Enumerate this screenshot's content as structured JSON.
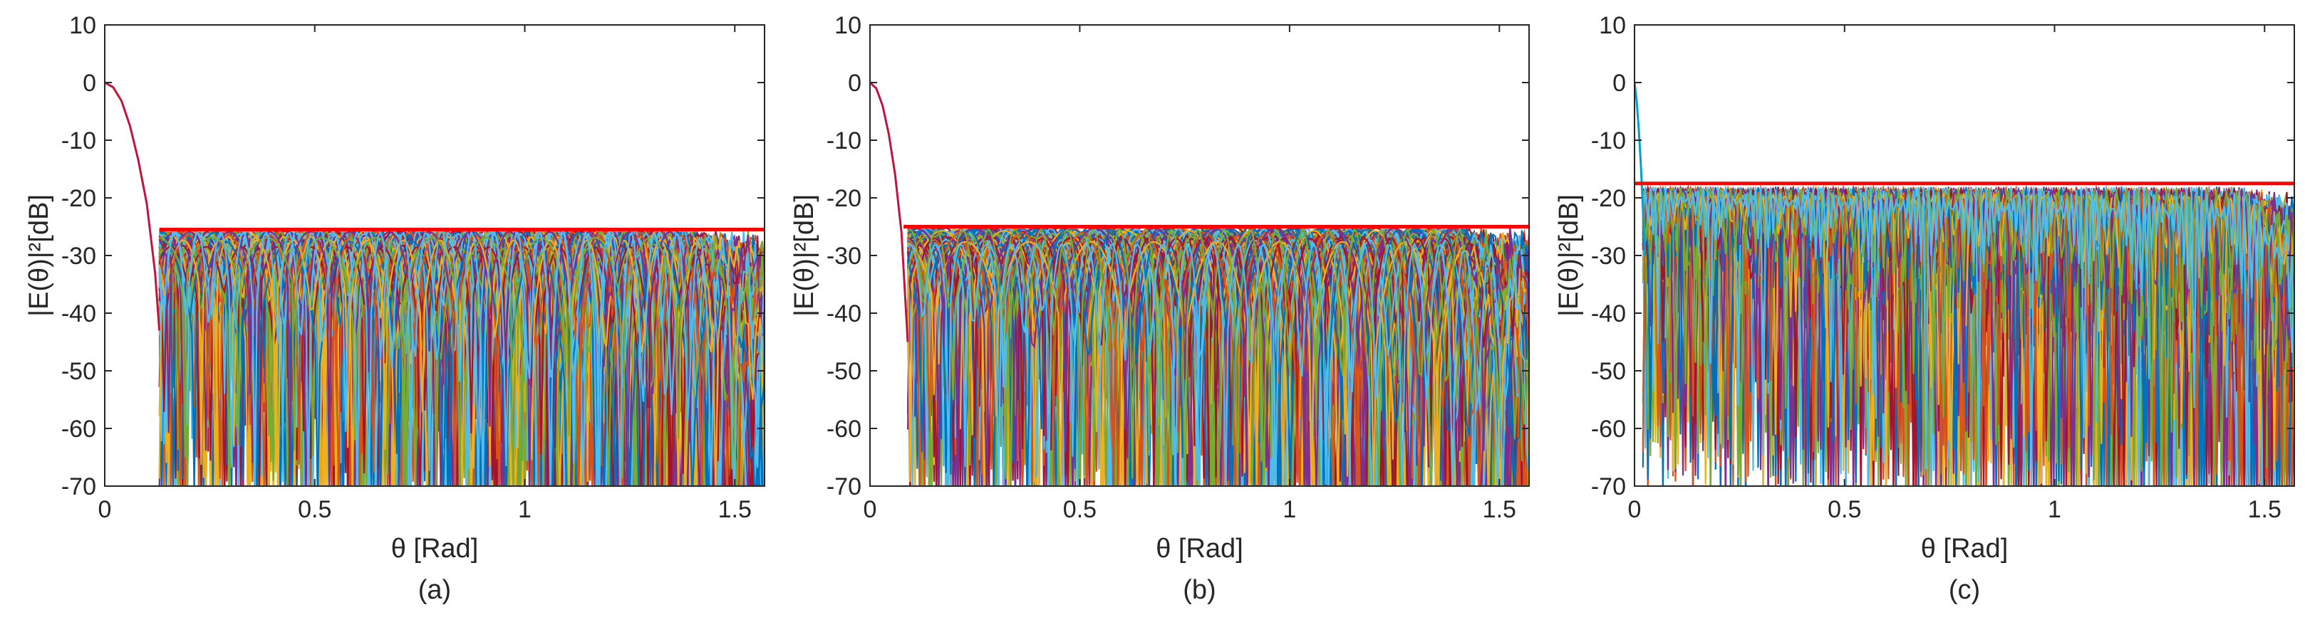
{
  "figure": {
    "panel_labels": [
      "(a)",
      "(b)",
      "(c)"
    ]
  },
  "chart_data": [
    {
      "type": "line",
      "panel": "(a)",
      "xlabel": "θ [Rad]",
      "ylabel": "|E(θ)|²[dB]",
      "xlim": [
        0,
        1.5708
      ],
      "ylim": [
        -70,
        10
      ],
      "xticks": [
        0,
        0.5,
        1,
        1.5
      ],
      "xtick_labels": [
        "0",
        "0.5",
        "1",
        "1.5"
      ],
      "yticks": [
        10,
        0,
        -10,
        -20,
        -30,
        -40,
        -50,
        -60,
        -70
      ],
      "ytick_labels": [
        "10",
        "0",
        "-10",
        "-20",
        "-30",
        "-40",
        "-50",
        "-60",
        "-70"
      ],
      "grid": false,
      "threshold_line": {
        "y": -25.5,
        "x_start": 0.13,
        "x_end": 1.5708,
        "color": "#ff0000"
      },
      "main_lobe": {
        "x": [
          0,
          0.02,
          0.04,
          0.06,
          0.08,
          0.1,
          0.12,
          0.13
        ],
        "y": [
          0,
          -0.8,
          -3.2,
          -7.5,
          -13.5,
          -21,
          -33,
          -43
        ],
        "color": "#c0143c"
      },
      "sidelobe_band": {
        "x_start": 0.13,
        "x_end": 1.5708,
        "peak_level": -25.5,
        "null_min": -70
      },
      "series_count": 160
    },
    {
      "type": "line",
      "panel": "(b)",
      "xlabel": "θ [Rad]",
      "ylabel": "|E(θ)|²[dB]",
      "xlim": [
        0,
        1.5708
      ],
      "ylim": [
        -70,
        10
      ],
      "xticks": [
        0,
        0.5,
        1,
        1.5
      ],
      "xtick_labels": [
        "0",
        "0.5",
        "1",
        "1.5"
      ],
      "yticks": [
        10,
        0,
        -10,
        -20,
        -30,
        -40,
        -50,
        -60,
        -70
      ],
      "ytick_labels": [
        "10",
        "0",
        "-10",
        "-20",
        "-30",
        "-40",
        "-50",
        "-60",
        "-70"
      ],
      "grid": false,
      "threshold_line": {
        "y": -25,
        "x_start": 0.08,
        "x_end": 1.5708,
        "color": "#ff0000"
      },
      "main_lobe": {
        "x": [
          0,
          0.015,
          0.03,
          0.045,
          0.06,
          0.075,
          0.09
        ],
        "y": [
          0,
          -1.0,
          -4.0,
          -9.0,
          -16,
          -26,
          -45
        ],
        "color": "#c0143c"
      },
      "sidelobe_band": {
        "x_start": 0.09,
        "x_end": 1.5708,
        "peak_level": -25,
        "null_min": -70
      },
      "series_count": 160
    },
    {
      "type": "line",
      "panel": "(c)",
      "xlabel": "θ [Rad]",
      "ylabel": "|E(θ)|²[dB]",
      "xlim": [
        0,
        1.5708
      ],
      "ylim": [
        -70,
        10
      ],
      "xticks": [
        0,
        0.5,
        1,
        1.5
      ],
      "xtick_labels": [
        "0",
        "0.5",
        "1",
        "1.5"
      ],
      "yticks": [
        10,
        0,
        -10,
        -20,
        -30,
        -40,
        -50,
        -60,
        -70
      ],
      "ytick_labels": [
        "10",
        "0",
        "-10",
        "-20",
        "-30",
        "-40",
        "-50",
        "-60",
        "-70"
      ],
      "grid": false,
      "threshold_line": {
        "y": -17.5,
        "x_start": 0.0,
        "x_end": 1.5708,
        "color": "#ff0000"
      },
      "main_lobe": {
        "x": [
          0,
          0.005,
          0.01,
          0.015,
          0.02,
          0.025
        ],
        "y": [
          0,
          -3,
          -8,
          -14,
          -22,
          -30
        ],
        "color": "#00a0d0"
      },
      "sidelobe_band": {
        "x_start": 0.02,
        "x_end": 1.5708,
        "peak_level": -18,
        "null_min": -70
      },
      "series_count": 160
    }
  ],
  "colors": {
    "palette": [
      "#0072BD",
      "#D95319",
      "#EDB120",
      "#7E2F8E",
      "#77AC30",
      "#4DBEEE",
      "#A2142F"
    ],
    "threshold": "#ff0000",
    "axis": "#262626"
  }
}
